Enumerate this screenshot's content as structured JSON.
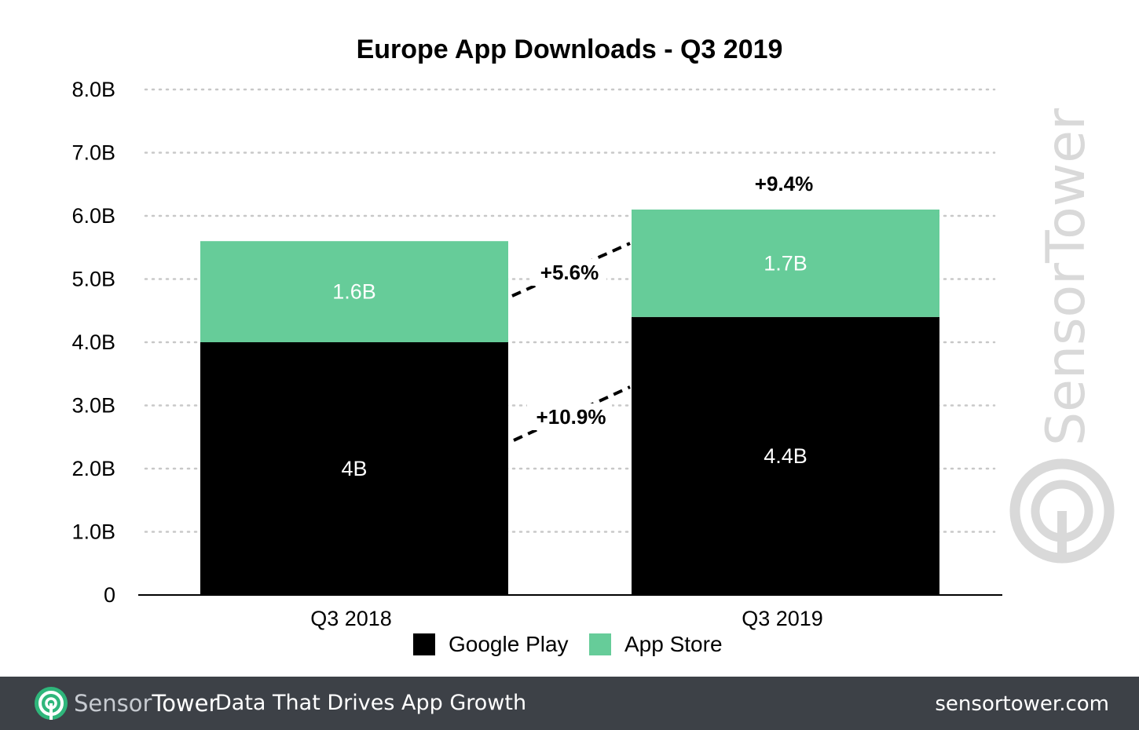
{
  "chart_data": {
    "type": "bar",
    "stacked": true,
    "title": "Europe App Downloads - Q3 2019",
    "categories": [
      "Q3 2018",
      "Q3 2019"
    ],
    "series": [
      {
        "name": "Google Play",
        "values": [
          4.0,
          4.4
        ],
        "labels": [
          "4B",
          "4.4B"
        ],
        "color": "#000000"
      },
      {
        "name": "App Store",
        "values": [
          1.6,
          1.7
        ],
        "labels": [
          "1.6B",
          "1.7B"
        ],
        "color": "#66cc99"
      }
    ],
    "ylim": [
      0,
      8
    ],
    "yticks": [
      {
        "value": 0,
        "label": "0"
      },
      {
        "value": 1,
        "label": "1.0B"
      },
      {
        "value": 2,
        "label": "2.0B"
      },
      {
        "value": 3,
        "label": "3.0B"
      },
      {
        "value": 4,
        "label": "4.0B"
      },
      {
        "value": 5,
        "label": "5.0B"
      },
      {
        "value": 6,
        "label": "6.0B"
      },
      {
        "value": 7,
        "label": "7.0B"
      },
      {
        "value": 8,
        "label": "8.0B"
      }
    ],
    "grid": true,
    "legend_position": "bottom",
    "annotations": {
      "total_growth": "+9.4%",
      "app_store_growth": "+5.6%",
      "google_play_growth": "+10.9%"
    }
  },
  "watermark": "SensorTower",
  "footer": {
    "brand_sensor": "Sensor",
    "brand_tower": "Tower",
    "tagline": "Data That Drives App Growth",
    "url": "sensortower.com"
  },
  "colors": {
    "footer_bg": "#3d4147",
    "watermark": "#d9d9d9",
    "grid": "#cccccc"
  }
}
